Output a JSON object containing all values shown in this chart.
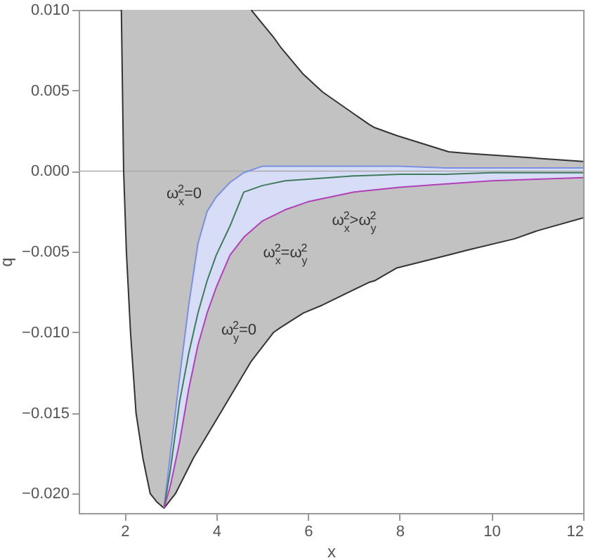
{
  "chart_data": {
    "type": "line",
    "xlabel": "x",
    "ylabel": "q",
    "xlim": [
      1,
      12
    ],
    "ylim": [
      -0.0212,
      0.01
    ],
    "xticks": [
      2,
      4,
      6,
      8,
      10,
      12
    ],
    "yticks": [
      {
        "value": -0.02,
        "label": "−0.020"
      },
      {
        "value": -0.015,
        "label": "−0.015"
      },
      {
        "value": -0.01,
        "label": "−0.010"
      },
      {
        "value": -0.005,
        "label": "−0.005"
      },
      {
        "value": 0,
        "label": "0.000"
      },
      {
        "value": 0.005,
        "label": "0.005"
      },
      {
        "value": 0.01,
        "label": "0.010"
      }
    ],
    "grid": false,
    "ref_lines": [
      {
        "axis": "y",
        "value": 0,
        "color": "#aaaaaa"
      }
    ],
    "series": [
      {
        "color": "#333333",
        "x": [
          1.93,
          1.98,
          2.04,
          2.13,
          2.25,
          2.4,
          2.56,
          2.7,
          2.86,
          3.11,
          3.5,
          4.09,
          4.76,
          5.25,
          5.4,
          5.9,
          6.32,
          7.33,
          7.45,
          7.94,
          9.07,
          9.47,
          10.5,
          11,
          12
        ],
        "values": [
          0.01,
          0,
          -0.005,
          -0.01,
          -0.015,
          -0.0178,
          -0.02,
          -0.0205,
          -0.0209,
          -0.02,
          -0.0178,
          -0.015,
          -0.0118,
          -0.01,
          -0.0097,
          -0.0088,
          -0.0083,
          -0.0069,
          -0.0068,
          -0.006,
          -0.0052,
          -0.0049,
          -0.0042,
          -0.0037,
          -0.0029
        ],
        "lower": [
          0.01,
          0,
          -0.005,
          -0.01,
          -0.015,
          -0.0178,
          -0.02,
          -0.0205,
          -0.0209,
          -0.02,
          -0.0178,
          -0.015,
          -0.0118,
          -0.01,
          -0.0097,
          -0.0088,
          -0.0083,
          -0.0069,
          -0.0068,
          -0.006,
          -0.0052,
          -0.0049,
          -0.0042,
          -0.0037,
          -0.0029
        ],
        "upper": [
          0.01,
          0.01,
          0.01,
          0.01,
          0.01,
          0.01,
          0.01,
          0.01,
          0.01,
          0.01,
          0.01,
          0.01,
          0.01,
          0.0083,
          0.0077,
          0.006,
          0.0049,
          0.0029,
          0.0027,
          0.0022,
          0.0012,
          0.0011,
          0.0009,
          0.0008,
          0.0006
        ]
      },
      {
        "color": "#333333",
        "x": [
          4.76,
          5.25,
          5.4,
          5.9,
          6.32,
          7.33,
          7.45,
          7.94,
          9.07,
          9.47,
          10.5,
          11,
          12
        ],
        "values": [
          0.01,
          0.0083,
          0.0077,
          0.006,
          0.0049,
          0.0029,
          0.0027,
          0.0022,
          0.0012,
          0.0011,
          0.0009,
          0.0008,
          0.0006
        ]
      },
      {
        "color": "#7b8fe0",
        "x": [
          2.86,
          3.0,
          3.2,
          3.4,
          3.6,
          3.8,
          4.0,
          4.3,
          4.6,
          5,
          5.5,
          6,
          7,
          8,
          9,
          10,
          11,
          12
        ],
        "values": [
          -0.0209,
          -0.0175,
          -0.0128,
          -0.0083,
          -0.0045,
          -0.0025,
          -0.0016,
          -0.0007,
          -0.0001,
          0.0003,
          0.0003,
          0.0003,
          0.0003,
          0.0003,
          0.0002,
          0.0002,
          0.0002,
          0.0002
        ],
        "upper": [
          -0.0209,
          -0.0175,
          -0.0128,
          -0.0083,
          -0.0045,
          -0.0025,
          -0.0016,
          -0.0007,
          -0.0001,
          0.0003,
          0.0003,
          0.0003,
          0.0003,
          0.0003,
          0.0002,
          0.0002,
          0.0002,
          0.0002
        ],
        "lower": [
          -0.0209,
          -0.0195,
          -0.0168,
          -0.0135,
          -0.0108,
          -0.0088,
          -0.0072,
          -0.0052,
          -0.0041,
          -0.0031,
          -0.0024,
          -0.0019,
          -0.0013,
          -0.001,
          -0.0008,
          -0.0006,
          -0.0005,
          -0.0004
        ]
      },
      {
        "color": "#3f7a5c",
        "x": [
          2.86,
          3.0,
          3.2,
          3.4,
          3.6,
          3.8,
          4.0,
          4.3,
          4.6,
          5,
          5.5,
          6,
          7,
          8,
          9,
          10,
          11,
          12
        ],
        "values": [
          -0.0209,
          -0.0185,
          -0.0143,
          -0.0113,
          -0.0088,
          -0.0068,
          -0.0052,
          -0.0034,
          -0.0013,
          -0.0009,
          -0.0006,
          -0.0005,
          -0.0003,
          -0.0002,
          -0.0002,
          -0.0001,
          -0.0001,
          -0.0001
        ]
      },
      {
        "color": "#b040b8",
        "x": [
          2.86,
          3.0,
          3.2,
          3.4,
          3.6,
          3.8,
          4.0,
          4.3,
          4.6,
          5,
          5.5,
          6,
          7,
          8,
          9,
          10,
          11,
          12
        ],
        "values": [
          -0.0209,
          -0.0195,
          -0.0168,
          -0.0135,
          -0.0108,
          -0.0088,
          -0.0072,
          -0.0052,
          -0.0041,
          -0.0031,
          -0.0024,
          -0.0019,
          -0.0013,
          -0.001,
          -0.0008,
          -0.0006,
          -0.0005,
          -0.0004
        ]
      }
    ],
    "annotations": [
      "ω$_{x}$$^{2}$=0",
      "ω$_{x}$$^{2}$=ω$_{y}$$^{2}$",
      "ω$_{y}$$^{2}$=0",
      "ω$_{x}$$^{2}$>ω$_{y}$$^{2}$"
    ]
  }
}
